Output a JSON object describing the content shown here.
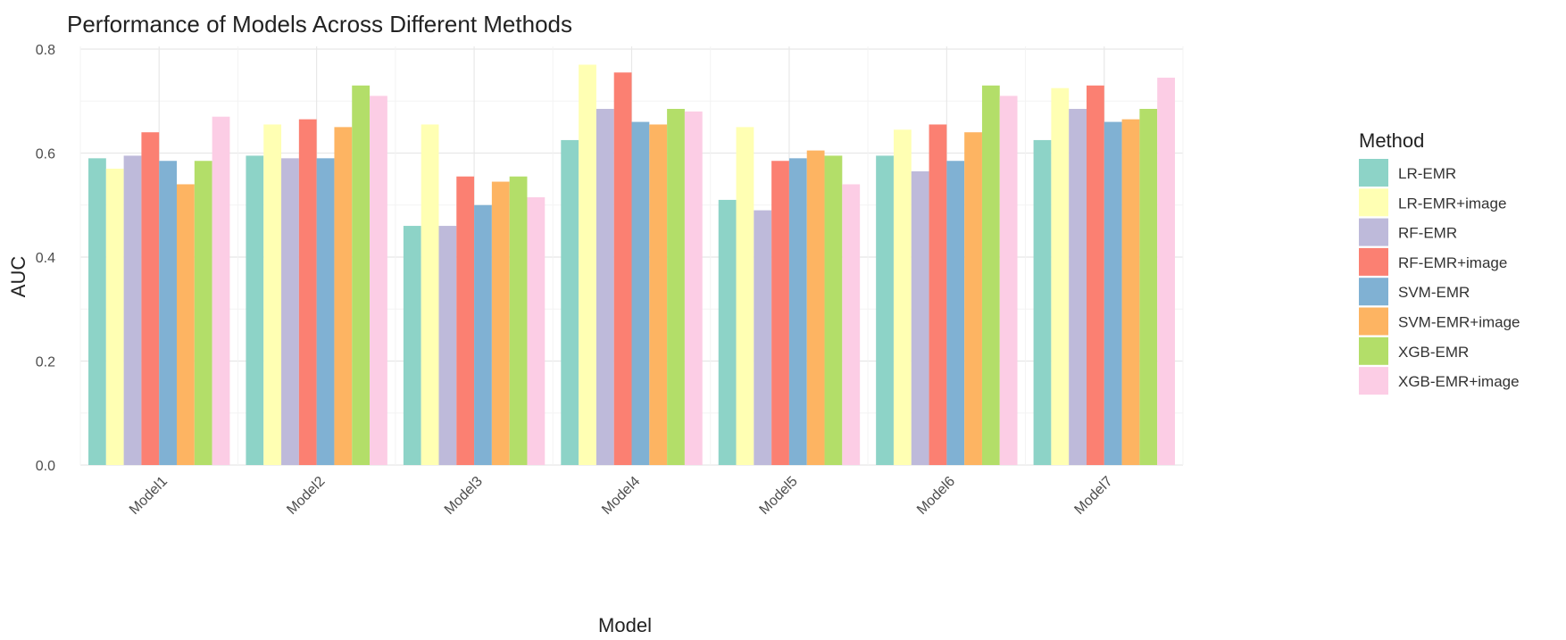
{
  "chart_data": {
    "type": "bar",
    "title": "Performance of Models Across Different Methods",
    "xlabel": "Model",
    "ylabel": "AUC",
    "ylim": [
      0,
      0.8
    ],
    "yticks": [
      "0.0",
      "0.2",
      "0.4",
      "0.6",
      "0.8"
    ],
    "grid": true,
    "legend_title": "Method",
    "legend_position": "right",
    "categories": [
      "Model1",
      "Model2",
      "Model3",
      "Model4",
      "Model5",
      "Model6",
      "Model7"
    ],
    "series": [
      {
        "name": "LR-EMR",
        "color": "#8DD3C7",
        "values": [
          0.59,
          0.595,
          0.46,
          0.625,
          0.51,
          0.595,
          0.625
        ]
      },
      {
        "name": "LR-EMR+image",
        "color": "#FFFFB3",
        "values": [
          0.57,
          0.655,
          0.655,
          0.77,
          0.65,
          0.645,
          0.725
        ]
      },
      {
        "name": "RF-EMR",
        "color": "#BEBADA",
        "values": [
          0.595,
          0.59,
          0.46,
          0.685,
          0.49,
          0.565,
          0.685
        ]
      },
      {
        "name": "RF-EMR+image",
        "color": "#FB8072",
        "values": [
          0.64,
          0.665,
          0.555,
          0.755,
          0.585,
          0.655,
          0.73
        ]
      },
      {
        "name": "SVM-EMR",
        "color": "#80B1D3",
        "values": [
          0.585,
          0.59,
          0.5,
          0.66,
          0.59,
          0.585,
          0.66
        ]
      },
      {
        "name": "SVM-EMR+image",
        "color": "#FDB462",
        "values": [
          0.54,
          0.65,
          0.545,
          0.655,
          0.605,
          0.64,
          0.665
        ]
      },
      {
        "name": "XGB-EMR",
        "color": "#B3DE69",
        "values": [
          0.585,
          0.73,
          0.555,
          0.685,
          0.595,
          0.73,
          0.685
        ]
      },
      {
        "name": "XGB-EMR+image",
        "color": "#FCCDE5",
        "values": [
          0.67,
          0.71,
          0.515,
          0.68,
          0.54,
          0.71,
          0.745
        ]
      }
    ]
  }
}
